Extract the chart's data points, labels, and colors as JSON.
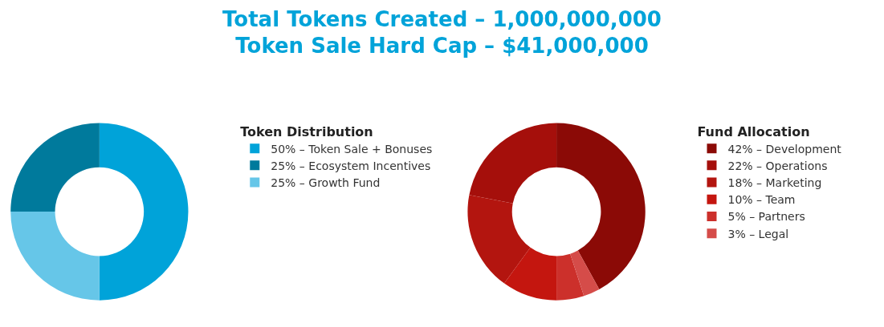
{
  "chart_data": [
    {
      "type": "donut",
      "title": "Total Tokens Created – 1,000,000,000\nToken Sale Hard Cap – $41,000,000",
      "legend_title": "Token Distribution",
      "categories": [
        "50% – Token Sale + Bonuses",
        "25% – Ecosystem Incentives",
        "25% – Growth Fund"
      ],
      "values": [
        50,
        25,
        25
      ],
      "colors": [
        "#00a3d9",
        "#007a9c",
        "#66c6e8"
      ],
      "legend": "right"
    },
    {
      "type": "donut",
      "legend_title": "Fund Allocation",
      "categories": [
        "42% – Development",
        "22% – Operations",
        "18% – Marketing",
        "10% – Team",
        "5% – Partners",
        "3% – Legal"
      ],
      "values": [
        42,
        22,
        18,
        10,
        5,
        3
      ],
      "colors": [
        "#8b0a06",
        "#a50f0b",
        "#b3150f",
        "#c4160f",
        "#cc302b",
        "#d54c49"
      ],
      "legend": "right"
    }
  ]
}
